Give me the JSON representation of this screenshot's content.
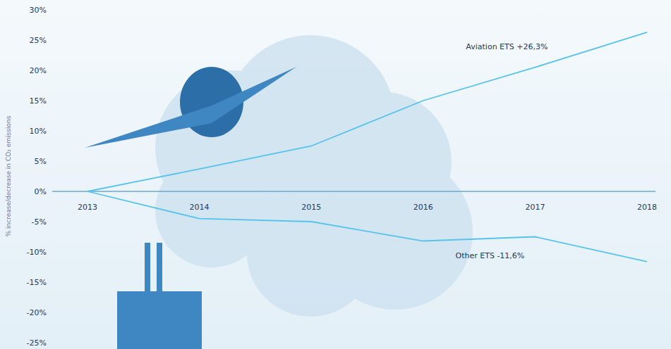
{
  "chart_data": {
    "type": "line",
    "y_label": "% increase/decrease in CO₂ emissions",
    "categories": [
      "2013",
      "2014",
      "2015",
      "2016",
      "2017",
      "2018"
    ],
    "series": [
      {
        "name": "Aviation ETS +26,3%",
        "color": "#56c3ec",
        "values": [
          0,
          3.7,
          7.5,
          15,
          20.5,
          26.3
        ]
      },
      {
        "name": "Other ETS -11,6%",
        "color": "#56c3ec",
        "values": [
          0,
          -4.5,
          -5,
          -8.2,
          -7.5,
          -11.6
        ]
      }
    ],
    "ylim": [
      -25,
      30
    ],
    "yticks": [
      {
        "value": -25,
        "label": "-25%"
      },
      {
        "value": -20,
        "label": "-20%"
      },
      {
        "value": -15,
        "label": "-15%"
      },
      {
        "value": -10,
        "label": "-10%"
      },
      {
        "value": -5,
        "label": "-5%"
      },
      {
        "value": 0,
        "label": "0%"
      },
      {
        "value": 5,
        "label": "5%"
      },
      {
        "value": 10,
        "label": "10%"
      },
      {
        "value": 15,
        "label": "15%"
      },
      {
        "value": 20,
        "label": "20%"
      },
      {
        "value": 25,
        "label": "25%"
      },
      {
        "value": 30,
        "label": "30%"
      }
    ],
    "grid": false,
    "marker": "none",
    "line_style": "solid"
  }
}
